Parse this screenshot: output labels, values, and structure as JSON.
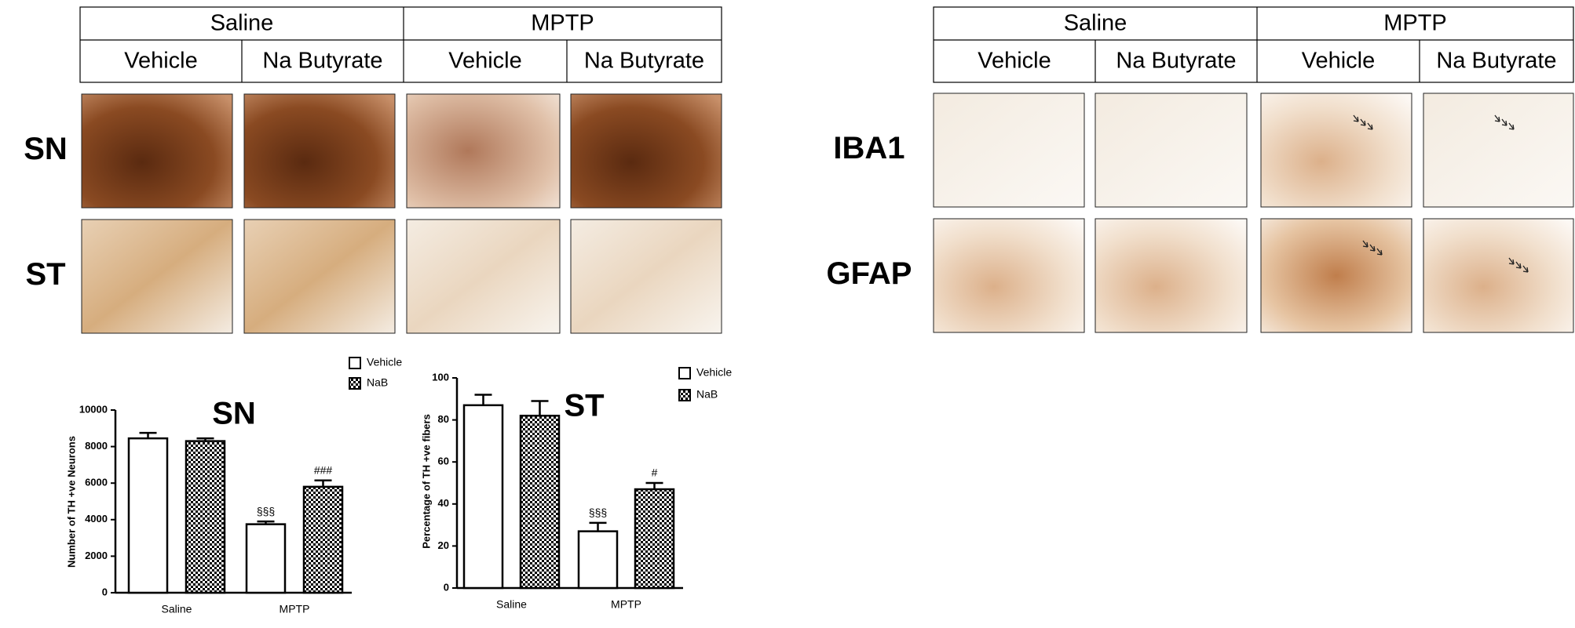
{
  "panel_tables": [
    {
      "groups": [
        "Saline",
        "MPTP"
      ],
      "conditions": [
        "Vehicle",
        "Na Butyrate",
        "Vehicle",
        "Na Butyrate"
      ],
      "rows": [
        "SN",
        "ST"
      ]
    },
    {
      "groups": [
        "Saline",
        "MPTP"
      ],
      "conditions": [
        "Vehicle",
        "Na Butyrate",
        "Vehicle",
        "Na Butyrate"
      ],
      "rows": [
        "IBA1",
        "GFAP"
      ]
    }
  ],
  "chart_data": [
    {
      "type": "bar",
      "title": "SN",
      "ylabel": "Number of TH +ve Neurons",
      "categories": [
        "Saline",
        "MPTP"
      ],
      "series": [
        {
          "name": "Vehicle",
          "color": "#ffffff",
          "values": [
            8450,
            3750
          ],
          "errors": [
            300,
            150
          ],
          "annotations": [
            null,
            "§§§"
          ]
        },
        {
          "name": "NaB",
          "color": "#000000",
          "pattern": "checker",
          "values": [
            8300,
            5800
          ],
          "errors": [
            150,
            350
          ],
          "annotations": [
            null,
            "###"
          ]
        }
      ],
      "ylim": [
        0,
        10000
      ],
      "yticks": [
        0,
        2000,
        4000,
        6000,
        8000,
        10000
      ],
      "grid": false
    },
    {
      "type": "bar",
      "title": "ST",
      "ylabel": "Percentage of TH +ve fibers",
      "categories": [
        "Saline",
        "MPTP"
      ],
      "series": [
        {
          "name": "Vehicle",
          "color": "#ffffff",
          "values": [
            87,
            27
          ],
          "errors": [
            5,
            4
          ],
          "annotations": [
            null,
            "§§§"
          ]
        },
        {
          "name": "NaB",
          "color": "#000000",
          "pattern": "checker",
          "values": [
            82,
            47
          ],
          "errors": [
            7,
            3
          ],
          "annotations": [
            null,
            "#"
          ]
        }
      ],
      "ylim": [
        0,
        100
      ],
      "yticks": [
        0,
        20,
        40,
        60,
        80,
        100
      ],
      "grid": false
    }
  ]
}
